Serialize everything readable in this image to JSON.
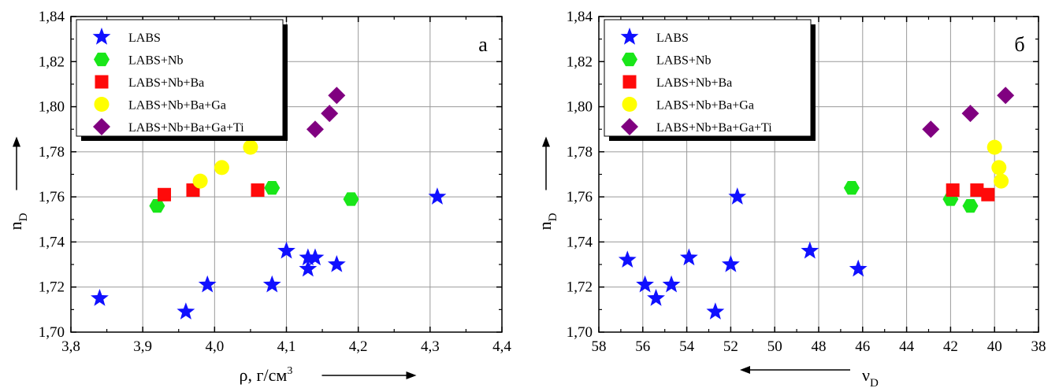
{
  "chart_data": [
    {
      "type": "scatter",
      "panel_label": "а",
      "xlabel": "ρ, г/см",
      "xlabel_sup": "3",
      "ylabel": "n",
      "ylabel_sub": "D",
      "x_arrow": "right",
      "xlim": [
        3.8,
        4.4
      ],
      "ylim": [
        1.7,
        1.84
      ],
      "x_ticks": [
        3.8,
        3.9,
        4.0,
        4.1,
        4.2,
        4.3,
        4.4
      ],
      "x_tick_labels": [
        "3,8",
        "3,9",
        "4,0",
        "4,1",
        "4,2",
        "4,3",
        "4,4"
      ],
      "y_ticks": [
        1.7,
        1.72,
        1.74,
        1.76,
        1.78,
        1.8,
        1.82,
        1.84
      ],
      "y_tick_labels": [
        "1,70",
        "1,72",
        "1,74",
        "1,76",
        "1,78",
        "1,80",
        "1,82",
        "1,84"
      ],
      "grid": true,
      "legend_position": "top-left",
      "series": [
        {
          "name": "LABS",
          "marker": "star",
          "color": "#1010ff",
          "points": [
            [
              3.84,
              1.715
            ],
            [
              3.96,
              1.709
            ],
            [
              3.99,
              1.721
            ],
            [
              4.08,
              1.721
            ],
            [
              4.1,
              1.736
            ],
            [
              4.13,
              1.728
            ],
            [
              4.13,
              1.733
            ],
            [
              4.14,
              1.733
            ],
            [
              4.17,
              1.73
            ],
            [
              4.31,
              1.76
            ]
          ]
        },
        {
          "name": "LABS+Nb",
          "marker": "hexagon",
          "color": "#19e619",
          "points": [
            [
              3.92,
              1.756
            ],
            [
              4.08,
              1.764
            ],
            [
              4.19,
              1.759
            ]
          ]
        },
        {
          "name": "LABS+Nb+Ba",
          "marker": "square",
          "color": "#ff0a0a",
          "points": [
            [
              3.93,
              1.761
            ],
            [
              3.97,
              1.763
            ],
            [
              4.06,
              1.763
            ]
          ]
        },
        {
          "name": "LABS+Nb+Ba+Ga",
          "marker": "circle",
          "color": "#ffff00",
          "points": [
            [
              3.98,
              1.767
            ],
            [
              4.01,
              1.773
            ],
            [
              4.05,
              1.782
            ]
          ]
        },
        {
          "name": "LABS+Nb+Ba+Ga+Ti",
          "marker": "diamond",
          "color": "#800080",
          "points": [
            [
              4.14,
              1.79
            ],
            [
              4.16,
              1.797
            ],
            [
              4.17,
              1.805
            ]
          ]
        }
      ]
    },
    {
      "type": "scatter",
      "panel_label": "б",
      "xlabel": "ν",
      "xlabel_sub": "D",
      "ylabel": "n",
      "ylabel_sub": "D",
      "x_arrow": "left",
      "x_reversed": true,
      "xlim": [
        58,
        38
      ],
      "ylim": [
        1.7,
        1.84
      ],
      "x_ticks": [
        58,
        56,
        54,
        52,
        50,
        48,
        46,
        44,
        42,
        40,
        38
      ],
      "x_tick_labels": [
        "58",
        "56",
        "54",
        "52",
        "50",
        "48",
        "46",
        "44",
        "42",
        "40",
        "38"
      ],
      "y_ticks": [
        1.7,
        1.72,
        1.74,
        1.76,
        1.78,
        1.8,
        1.82,
        1.84
      ],
      "y_tick_labels": [
        "1,70",
        "1,72",
        "1,74",
        "1,76",
        "1,78",
        "1,80",
        "1,82",
        "1,84"
      ],
      "grid": true,
      "legend_position": "top-left",
      "series": [
        {
          "name": "LABS",
          "marker": "star",
          "color": "#1010ff",
          "points": [
            [
              56.7,
              1.732
            ],
            [
              55.9,
              1.721
            ],
            [
              55.4,
              1.715
            ],
            [
              54.7,
              1.721
            ],
            [
              53.9,
              1.733
            ],
            [
              52.7,
              1.709
            ],
            [
              52.0,
              1.73
            ],
            [
              51.7,
              1.76
            ],
            [
              48.4,
              1.736
            ],
            [
              46.2,
              1.728
            ]
          ]
        },
        {
          "name": "LABS+Nb",
          "marker": "hexagon",
          "color": "#19e619",
          "points": [
            [
              46.5,
              1.764
            ],
            [
              42.0,
              1.759
            ],
            [
              41.1,
              1.756
            ]
          ]
        },
        {
          "name": "LABS+Nb+Ba",
          "marker": "square",
          "color": "#ff0a0a",
          "points": [
            [
              41.9,
              1.763
            ],
            [
              40.8,
              1.763
            ],
            [
              40.3,
              1.761
            ]
          ]
        },
        {
          "name": "LABS+Nb+Ba+Ga",
          "marker": "circle",
          "color": "#ffff00",
          "points": [
            [
              39.7,
              1.767
            ],
            [
              39.8,
              1.773
            ],
            [
              40.0,
              1.782
            ]
          ]
        },
        {
          "name": "LABS+Nb+Ba+Ga+Ti",
          "marker": "diamond",
          "color": "#800080",
          "points": [
            [
              42.9,
              1.79
            ],
            [
              41.1,
              1.797
            ],
            [
              39.5,
              1.805
            ]
          ]
        }
      ]
    }
  ]
}
